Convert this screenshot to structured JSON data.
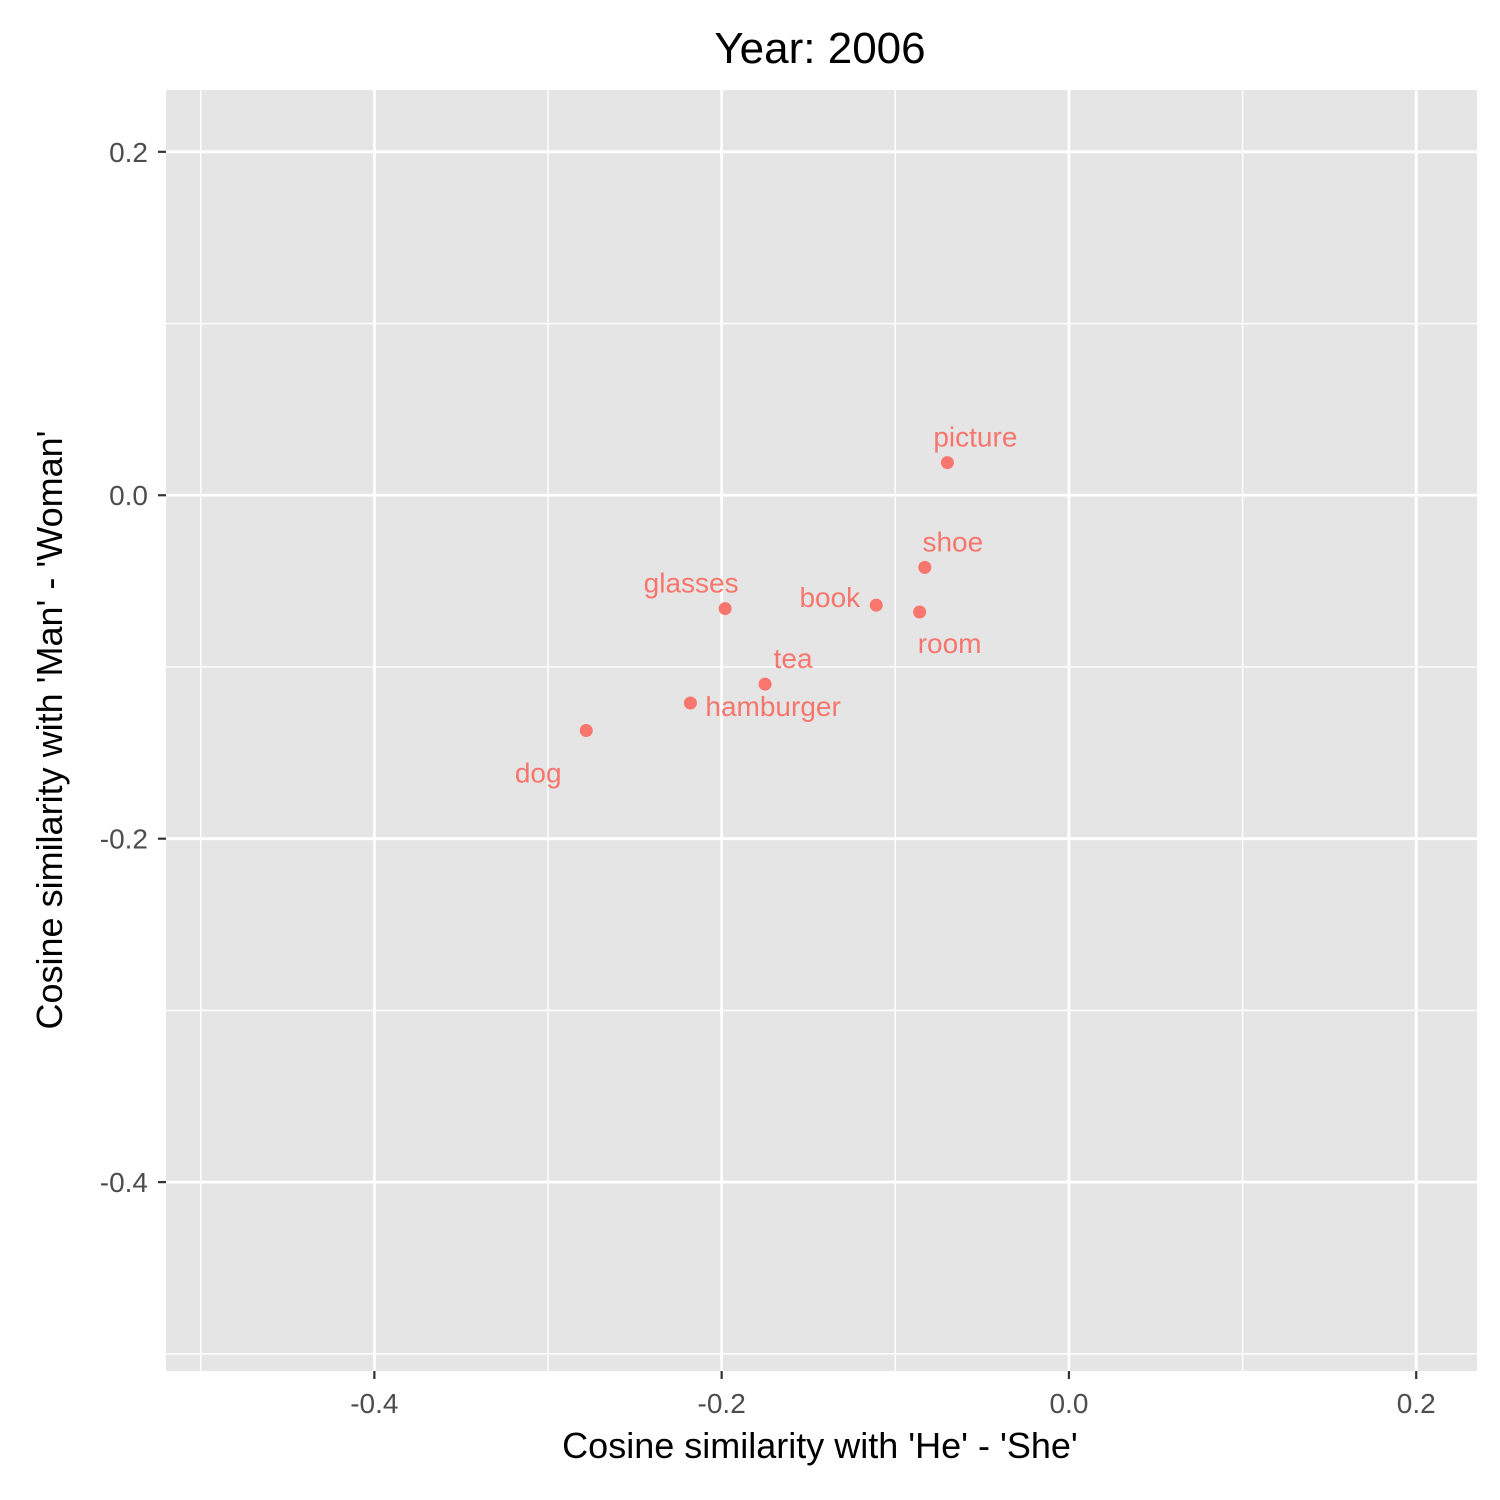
{
  "chart_data": {
    "type": "scatter",
    "title": "Year: 2006",
    "xlabel": "Cosine similarity with 'He' - 'She'",
    "ylabel": "Cosine similarity with 'Man' - 'Woman'",
    "xlim": [
      -0.52,
      0.235
    ],
    "ylim": [
      -0.51,
      0.236
    ],
    "x_ticks": [
      -0.4,
      -0.2,
      0.0,
      0.2
    ],
    "x_tick_labels": [
      "-0.4",
      "-0.2",
      "0.0",
      "0.2"
    ],
    "y_ticks": [
      0.2,
      0.0,
      -0.2,
      -0.4
    ],
    "y_tick_labels": [
      "0.2",
      "0.0",
      "-0.2",
      "-0.4"
    ],
    "x_minor_ticks": [
      -0.5,
      -0.3,
      -0.1,
      0.1
    ],
    "y_minor_ticks": [
      0.1,
      -0.1,
      -0.3,
      -0.5
    ],
    "grid": true,
    "legend": "none",
    "point_color": "#F8766D",
    "panel_color": "#E5E5E5",
    "points": [
      {
        "label": "picture",
        "x": -0.07,
        "y": 0.019,
        "label_pos": "above"
      },
      {
        "label": "shoe",
        "x": -0.083,
        "y": -0.042,
        "label_pos": "above-right"
      },
      {
        "label": "room",
        "x": -0.086,
        "y": -0.068,
        "label_pos": "below"
      },
      {
        "label": "book",
        "x": -0.111,
        "y": -0.064,
        "label_pos": "left"
      },
      {
        "label": "glasses",
        "x": -0.198,
        "y": -0.066,
        "label_pos": "above-left"
      },
      {
        "label": "tea",
        "x": -0.175,
        "y": -0.11,
        "label_pos": "above-right"
      },
      {
        "label": "hamburger",
        "x": -0.218,
        "y": -0.121,
        "label_pos": "below-right"
      },
      {
        "label": "dog",
        "x": -0.278,
        "y": -0.137,
        "label_pos": "below-left"
      }
    ]
  }
}
